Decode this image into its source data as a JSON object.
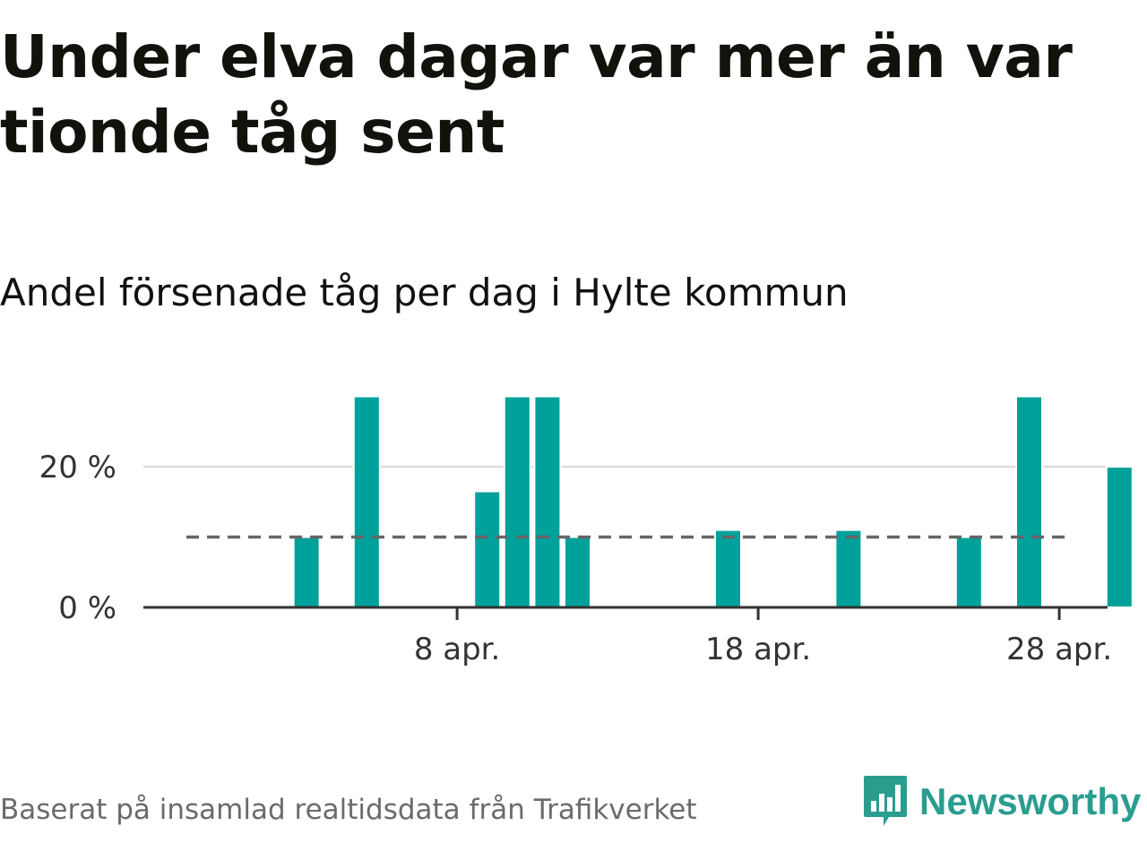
{
  "title": "Under elva dagar var mer än var tionde tåg sent",
  "subtitle": "Andel försenade tåg per dag i Hylte kommun",
  "source": "Baserat på insamlad realtidsdata från Trafikverket",
  "brand": {
    "name": "Newsworthy",
    "icon": "newsworthy-logo-icon"
  },
  "colors": {
    "bar": "#00a19a",
    "reference": "#666666",
    "grid": "#dddddd",
    "axis": "#333333",
    "brand": "#2a9d8f"
  },
  "chart_data": {
    "type": "bar",
    "x_type": "date",
    "x": [
      "2025-03-31",
      "2025-04-01",
      "2025-04-02",
      "2025-04-03",
      "2025-04-04",
      "2025-04-05",
      "2025-04-06",
      "2025-04-07",
      "2025-04-08",
      "2025-04-09",
      "2025-04-10",
      "2025-04-11",
      "2025-04-12",
      "2025-04-13",
      "2025-04-14",
      "2025-04-15",
      "2025-04-16",
      "2025-04-17",
      "2025-04-18",
      "2025-04-19",
      "2025-04-20",
      "2025-04-21",
      "2025-04-22",
      "2025-04-23",
      "2025-04-24",
      "2025-04-25",
      "2025-04-26",
      "2025-04-27",
      "2025-04-28",
      "2025-04-29",
      "2025-04-30"
    ],
    "values": [
      0,
      0,
      0,
      10,
      0,
      30,
      0,
      0,
      0,
      16.5,
      30,
      30,
      10,
      0,
      0,
      0,
      0,
      11,
      0,
      0,
      0,
      11,
      0,
      0,
      0,
      10,
      0,
      30,
      0,
      0,
      20
    ],
    "reference_line": {
      "value": 10,
      "style": "dashed"
    },
    "xticks": [
      {
        "date": "2025-04-08",
        "label": "8 apr."
      },
      {
        "date": "2025-04-18",
        "label": "18 apr."
      },
      {
        "date": "2025-04-28",
        "label": "28 apr."
      }
    ],
    "yticks": [
      {
        "value": 0,
        "label": "0 %"
      },
      {
        "value": 20,
        "label": "20 %"
      }
    ],
    "ylim": [
      0,
      30
    ],
    "unit": "%",
    "grid": true,
    "legend": "none"
  }
}
